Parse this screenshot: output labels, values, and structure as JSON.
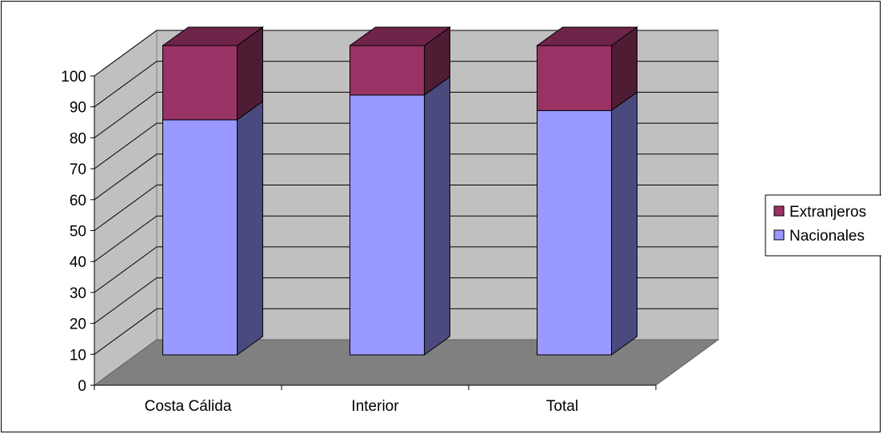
{
  "chart_data": {
    "type": "bar",
    "stacked": true,
    "three_d": true,
    "categories": [
      "Costa Cálida",
      "Interior",
      "Total"
    ],
    "series": [
      {
        "name": "Nacionales",
        "values": [
          76,
          84,
          79
        ]
      },
      {
        "name": "Extranjeros",
        "values": [
          24,
          16,
          21
        ]
      }
    ],
    "ylim": [
      0,
      100
    ],
    "yticks": [
      0,
      10,
      20,
      30,
      40,
      50,
      60,
      70,
      80,
      90,
      100
    ],
    "grid": true,
    "legend_position": "right",
    "legend_order": [
      "Extranjeros",
      "Nacionales"
    ],
    "colors": {
      "Nacionales": {
        "front": "#9999FF",
        "side": "#4A4A7E",
        "top": "#7A7AD0"
      },
      "Extranjeros": {
        "front": "#993366",
        "side": "#4E1C33",
        "top": "#6F2449"
      },
      "wall": "#C0C0C0",
      "floor": "#808080",
      "gridline": "#000000"
    }
  }
}
